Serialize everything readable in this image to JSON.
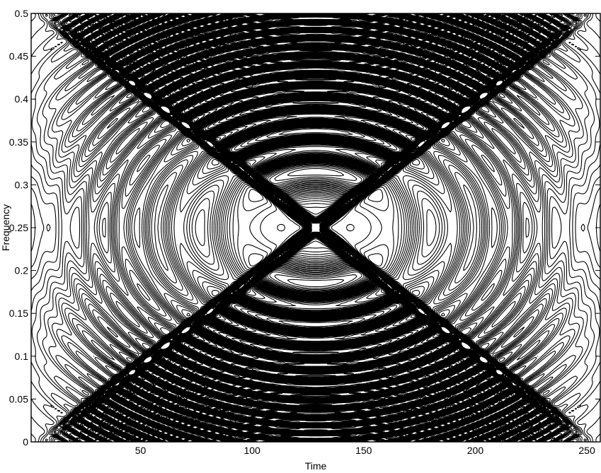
{
  "chart_data": {
    "type": "contour",
    "xlabel": "Time",
    "ylabel": "Frequency",
    "xlim": [
      1,
      256
    ],
    "ylim": [
      0,
      0.5
    ],
    "x_ticks": [
      50,
      100,
      150,
      200,
      250
    ],
    "x_tick_labels": [
      "50",
      "100",
      "150",
      "200",
      "250"
    ],
    "y_ticks": [
      0,
      0.05,
      0.1,
      0.15,
      0.2,
      0.25,
      0.3,
      0.35,
      0.4,
      0.45,
      0.5
    ],
    "y_tick_labels": [
      "0",
      "0.05",
      "0.1",
      "0.15",
      "0.2",
      "0.25",
      "0.3",
      "0.35",
      "0.4",
      "0.45",
      "0.5"
    ],
    "grid": false,
    "line_color": "#000000",
    "features": {
      "chirp_crossing_point": [
        128,
        0.25
      ],
      "rising_chirp": {
        "from": [
          26,
          0.005
        ],
        "to": [
          230,
          0.495
        ]
      },
      "falling_chirp": {
        "from": [
          26,
          0.495
        ],
        "to": [
          230,
          0.005
        ]
      },
      "lobe_centers": [
        [
          30,
          0.375
        ],
        [
          30,
          0.125
        ],
        [
          62,
          0.25
        ],
        [
          192,
          0.25
        ],
        [
          225,
          0.375
        ],
        [
          225,
          0.125
        ],
        [
          128,
          0.5
        ],
        [
          128,
          0
        ]
      ]
    }
  }
}
